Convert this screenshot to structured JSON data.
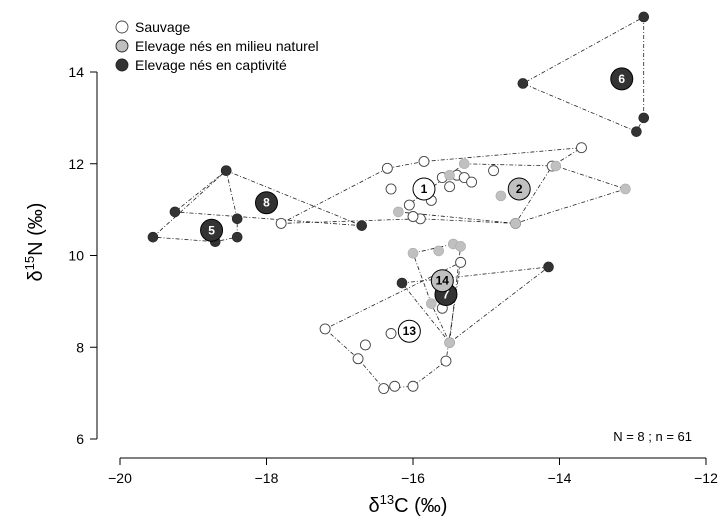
{
  "chart_data": {
    "type": "scatter",
    "xlabel_base": "δ",
    "xlabel_sup": "13",
    "xlabel_rest": "C (‰)",
    "ylabel_base": "δ",
    "ylabel_sup": "15",
    "ylabel_rest": "N (‰)",
    "xlim": [
      -20,
      -12
    ],
    "ylim": [
      6,
      14.5
    ],
    "x_ticks": [
      -20,
      -18,
      -16,
      -14,
      -12
    ],
    "x_tick_labels": [
      "−20",
      "−18",
      "−16",
      "−14",
      "−12"
    ],
    "y_ticks": [
      6,
      8,
      10,
      12,
      14
    ],
    "y_tick_labels": [
      "6",
      "8",
      "10",
      "12",
      "14"
    ],
    "grid": false,
    "legend_position": "top-left",
    "annotation": "N = 8 ; n = 61",
    "categories": [
      {
        "key": "wild",
        "name": "Sauvage",
        "fill": "#ffffff"
      },
      {
        "key": "farm_wild",
        "name": "Elevage nés en milieu naturel",
        "fill": "#c0c0c0"
      },
      {
        "key": "farm_capt",
        "name": "Elevage nés en captivité",
        "fill": "#333333"
      }
    ],
    "groups": [
      {
        "label": "1",
        "category": "wild",
        "centroid": [
          -15.85,
          11.45
        ],
        "hull": [
          [
            -16.35,
            11.9
          ],
          [
            -15.85,
            12.05
          ],
          [
            -13.7,
            12.35
          ],
          [
            -14.1,
            11.95
          ],
          [
            -14.6,
            10.7
          ],
          [
            -15.9,
            10.8
          ],
          [
            -17.8,
            10.7
          ]
        ],
        "points": [
          [
            -16.35,
            11.9
          ],
          [
            -15.85,
            12.05
          ],
          [
            -13.7,
            12.35
          ],
          [
            -14.1,
            11.95
          ],
          [
            -14.6,
            10.7
          ],
          [
            -15.9,
            10.8
          ],
          [
            -17.8,
            10.7
          ],
          [
            -15.6,
            11.7
          ],
          [
            -15.4,
            11.75
          ],
          [
            -15.3,
            11.7
          ],
          [
            -15.5,
            11.5
          ],
          [
            -16.3,
            11.45
          ],
          [
            -15.75,
            11.2
          ],
          [
            -16.05,
            11.1
          ],
          [
            -15.2,
            11.6
          ],
          [
            -14.9,
            11.85
          ],
          [
            -16.0,
            10.85
          ]
        ]
      },
      {
        "label": "2",
        "category": "farm_wild",
        "centroid": [
          -14.55,
          11.45
        ],
        "hull": [
          [
            -15.3,
            12.0
          ],
          [
            -14.05,
            11.95
          ],
          [
            -13.1,
            11.45
          ],
          [
            -14.6,
            10.7
          ],
          [
            -16.2,
            10.95
          ]
        ],
        "points": [
          [
            -15.3,
            12.0
          ],
          [
            -14.05,
            11.95
          ],
          [
            -13.1,
            11.45
          ],
          [
            -14.6,
            10.7
          ],
          [
            -16.2,
            10.95
          ],
          [
            -14.8,
            11.3
          ],
          [
            -15.5,
            11.75
          ]
        ]
      },
      {
        "label": "5",
        "category": "farm_capt",
        "centroid": [
          -18.75,
          10.55
        ],
        "hull": [
          [
            -18.55,
            11.85
          ],
          [
            -18.4,
            10.8
          ],
          [
            -18.4,
            10.4
          ],
          [
            -18.7,
            10.3
          ],
          [
            -19.55,
            10.4
          ]
        ],
        "points": [
          [
            -18.55,
            11.85
          ],
          [
            -18.4,
            10.8
          ],
          [
            -18.4,
            10.4
          ],
          [
            -18.7,
            10.3
          ],
          [
            -19.55,
            10.4
          ]
        ]
      },
      {
        "label": "6",
        "category": "farm_capt",
        "centroid": [
          -13.15,
          13.85
        ],
        "hull": [
          [
            -12.85,
            15.2
          ],
          [
            -12.85,
            13.0
          ],
          [
            -12.95,
            12.7
          ],
          [
            -14.5,
            13.75
          ]
        ],
        "points": [
          [
            -12.85,
            15.2
          ],
          [
            -12.85,
            13.0
          ],
          [
            -12.95,
            12.7
          ],
          [
            -14.5,
            13.75
          ]
        ]
      },
      {
        "label": "7",
        "category": "farm_capt",
        "centroid": [
          -15.55,
          9.15
        ],
        "hull": [
          [
            -16.15,
            9.4
          ],
          [
            -14.15,
            9.75
          ],
          [
            -15.5,
            8.1
          ]
        ],
        "points": [
          [
            -16.15,
            9.4
          ],
          [
            -14.15,
            9.75
          ],
          [
            -15.5,
            8.1
          ]
        ]
      },
      {
        "label": "8",
        "category": "farm_capt",
        "centroid": [
          -18.0,
          11.15
        ],
        "hull": [
          [
            -18.55,
            11.85
          ],
          [
            -16.7,
            10.65
          ],
          [
            -19.25,
            10.95
          ]
        ],
        "points": [
          [
            -18.55,
            11.85
          ],
          [
            -16.7,
            10.65
          ],
          [
            -19.25,
            10.95
          ]
        ]
      },
      {
        "label": "13",
        "category": "wild",
        "centroid": [
          -16.05,
          8.35
        ],
        "hull": [
          [
            -15.35,
            9.85
          ],
          [
            -15.55,
            7.7
          ],
          [
            -16.0,
            7.15
          ],
          [
            -16.4,
            7.1
          ],
          [
            -16.75,
            7.75
          ],
          [
            -17.2,
            8.4
          ]
        ],
        "points": [
          [
            -15.35,
            9.85
          ],
          [
            -15.55,
            7.7
          ],
          [
            -16.0,
            7.15
          ],
          [
            -16.25,
            7.15
          ],
          [
            -16.4,
            7.1
          ],
          [
            -16.75,
            7.75
          ],
          [
            -17.2,
            8.4
          ],
          [
            -16.65,
            8.05
          ],
          [
            -16.3,
            8.3
          ],
          [
            -15.6,
            8.85
          ]
        ]
      },
      {
        "label": "14",
        "category": "farm_wild",
        "centroid": [
          -15.6,
          9.45
        ],
        "hull": [
          [
            -16.0,
            10.05
          ],
          [
            -15.45,
            10.25
          ],
          [
            -15.35,
            10.2
          ],
          [
            -15.5,
            8.1
          ],
          [
            -15.75,
            8.95
          ]
        ],
        "points": [
          [
            -16.0,
            10.05
          ],
          [
            -15.45,
            10.25
          ],
          [
            -15.35,
            10.2
          ],
          [
            -15.65,
            10.1
          ],
          [
            -15.5,
            8.1
          ],
          [
            -15.75,
            8.95
          ]
        ]
      }
    ]
  }
}
